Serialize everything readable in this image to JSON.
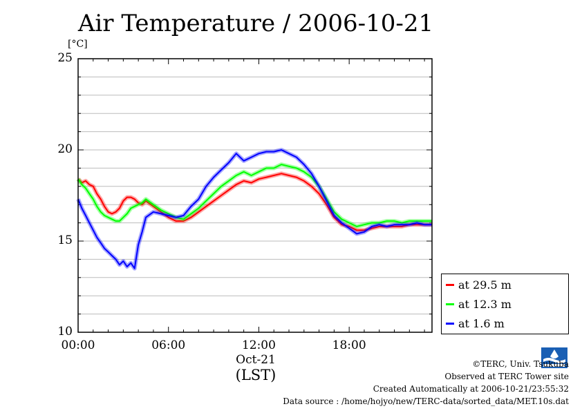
{
  "chart_data": {
    "type": "line",
    "title": "Air Temperature / 2006-10-21",
    "ylabel": "[°C]",
    "xlabel": "(LST)",
    "date_label": "Oct-21",
    "ylim": [
      10,
      25
    ],
    "xlim": [
      0,
      23.5
    ],
    "x_ticks": [
      {
        "value": 0,
        "label": "00:00"
      },
      {
        "value": 6,
        "label": "06:00"
      },
      {
        "value": 12,
        "label": "12:00"
      },
      {
        "value": 18,
        "label": "18:00"
      }
    ],
    "y_ticks": [
      {
        "value": 10,
        "label": "10"
      },
      {
        "value": 15,
        "label": "15"
      },
      {
        "value": 20,
        "label": "20"
      },
      {
        "value": 25,
        "label": "25"
      }
    ],
    "grid": true,
    "legend_position": "bottom-right",
    "x_unit": "hours",
    "series": [
      {
        "name": "at 29.5 m",
        "color": "#ff0000",
        "x": [
          0,
          0.25,
          0.5,
          0.75,
          1,
          1.25,
          1.5,
          1.75,
          2,
          2.25,
          2.5,
          2.75,
          3,
          3.25,
          3.5,
          3.75,
          4,
          4.25,
          4.5,
          5,
          5.5,
          6,
          6.5,
          7,
          7.5,
          8,
          8.5,
          9,
          9.5,
          10,
          10.5,
          11,
          11.5,
          12,
          12.5,
          13,
          13.5,
          14,
          14.5,
          15,
          15.5,
          16,
          16.5,
          17,
          17.5,
          18,
          18.5,
          19,
          19.5,
          20,
          20.5,
          21,
          21.5,
          22,
          22.5,
          23,
          23.5
        ],
        "values": [
          18.4,
          18.2,
          18.3,
          18.1,
          18.0,
          17.6,
          17.3,
          16.9,
          16.6,
          16.5,
          16.6,
          16.8,
          17.2,
          17.4,
          17.4,
          17.3,
          17.1,
          17.0,
          17.2,
          16.9,
          16.6,
          16.3,
          16.1,
          16.1,
          16.3,
          16.6,
          16.9,
          17.2,
          17.5,
          17.8,
          18.1,
          18.3,
          18.2,
          18.4,
          18.5,
          18.6,
          18.7,
          18.6,
          18.5,
          18.3,
          18.0,
          17.6,
          17.0,
          16.3,
          15.9,
          15.8,
          15.6,
          15.6,
          15.7,
          15.8,
          15.8,
          15.8,
          15.8,
          15.9,
          15.9,
          15.9,
          15.9
        ]
      },
      {
        "name": "at 12.3 m",
        "color": "#00ff00",
        "x": [
          0,
          0.25,
          0.5,
          0.75,
          1,
          1.25,
          1.5,
          1.75,
          2,
          2.25,
          2.5,
          2.75,
          3,
          3.25,
          3.5,
          3.75,
          4,
          4.25,
          4.5,
          5,
          5.5,
          6,
          6.5,
          7,
          7.5,
          8,
          8.5,
          9,
          9.5,
          10,
          10.5,
          11,
          11.5,
          12,
          12.5,
          13,
          13.5,
          14,
          14.5,
          15,
          15.5,
          16,
          16.5,
          17,
          17.5,
          18,
          18.5,
          19,
          19.5,
          20,
          20.5,
          21,
          21.5,
          22,
          22.5,
          23,
          23.5
        ],
        "values": [
          18.4,
          18.1,
          17.9,
          17.6,
          17.3,
          16.9,
          16.6,
          16.4,
          16.3,
          16.2,
          16.1,
          16.1,
          16.3,
          16.5,
          16.8,
          16.9,
          17.0,
          17.1,
          17.3,
          17.0,
          16.7,
          16.5,
          16.3,
          16.2,
          16.5,
          16.8,
          17.2,
          17.6,
          18.0,
          18.3,
          18.6,
          18.8,
          18.6,
          18.8,
          19.0,
          19.0,
          19.2,
          19.1,
          19.0,
          18.8,
          18.5,
          18.0,
          17.3,
          16.6,
          16.2,
          16.0,
          15.8,
          15.9,
          16.0,
          16.0,
          16.1,
          16.1,
          16.0,
          16.1,
          16.1,
          16.1,
          16.1
        ]
      },
      {
        "name": "at 1.6 m",
        "color": "#0000ff",
        "x": [
          0,
          0.25,
          0.5,
          0.75,
          1,
          1.25,
          1.5,
          1.75,
          2,
          2.25,
          2.5,
          2.75,
          3,
          3.25,
          3.5,
          3.75,
          4,
          4.25,
          4.5,
          5,
          5.5,
          6,
          6.5,
          7,
          7.5,
          8,
          8.5,
          9,
          9.5,
          10,
          10.5,
          11,
          11.5,
          12,
          12.5,
          13,
          13.5,
          14,
          14.5,
          15,
          15.5,
          16,
          16.5,
          17,
          17.5,
          18,
          18.5,
          19,
          19.5,
          20,
          20.5,
          21,
          21.5,
          22,
          22.5,
          23,
          23.5
        ],
        "values": [
          17.3,
          16.8,
          16.4,
          16.0,
          15.6,
          15.2,
          14.9,
          14.6,
          14.4,
          14.2,
          14.0,
          13.7,
          13.9,
          13.6,
          13.8,
          13.5,
          14.8,
          15.5,
          16.3,
          16.6,
          16.5,
          16.4,
          16.3,
          16.4,
          16.9,
          17.3,
          18.0,
          18.5,
          18.9,
          19.3,
          19.8,
          19.4,
          19.6,
          19.8,
          19.9,
          19.9,
          20.0,
          19.8,
          19.6,
          19.2,
          18.7,
          18.0,
          17.2,
          16.4,
          16.0,
          15.7,
          15.4,
          15.5,
          15.8,
          15.9,
          15.8,
          15.9,
          15.9,
          15.9,
          16.0,
          15.9,
          15.9
        ]
      }
    ]
  },
  "credits": {
    "copyright": "©TERC, Univ. Tsukuba",
    "observed": "Observed at TERC Tower site",
    "created": "Created Automatically at 2006-10-21/23:55:32",
    "source": "Data source : /home/hojyo/new/TERC-data/sorted_data/MET.10s.dat"
  }
}
